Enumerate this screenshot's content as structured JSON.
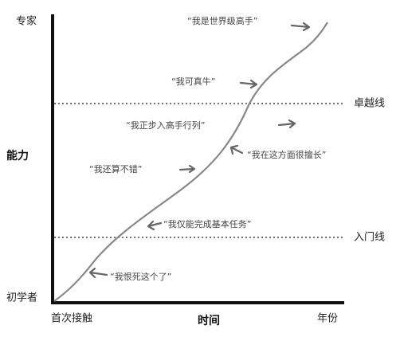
{
  "axes": {
    "y_top": "专家",
    "y_label": "能力",
    "y_bottom": "初学者",
    "x_start": "首次接触",
    "x_label": "时间",
    "x_end": "年份"
  },
  "lines": [
    {
      "label": "卓越线"
    },
    {
      "label": "入门线"
    }
  ],
  "annotations": [
    "“我是世界级高手”",
    "“我可真牛”",
    "“我正步入高手行列”",
    "“我在这方面很擅长”",
    "“我还算不错”",
    "“我仅能完成基本任务”",
    "“我恨死这个了”"
  ]
}
